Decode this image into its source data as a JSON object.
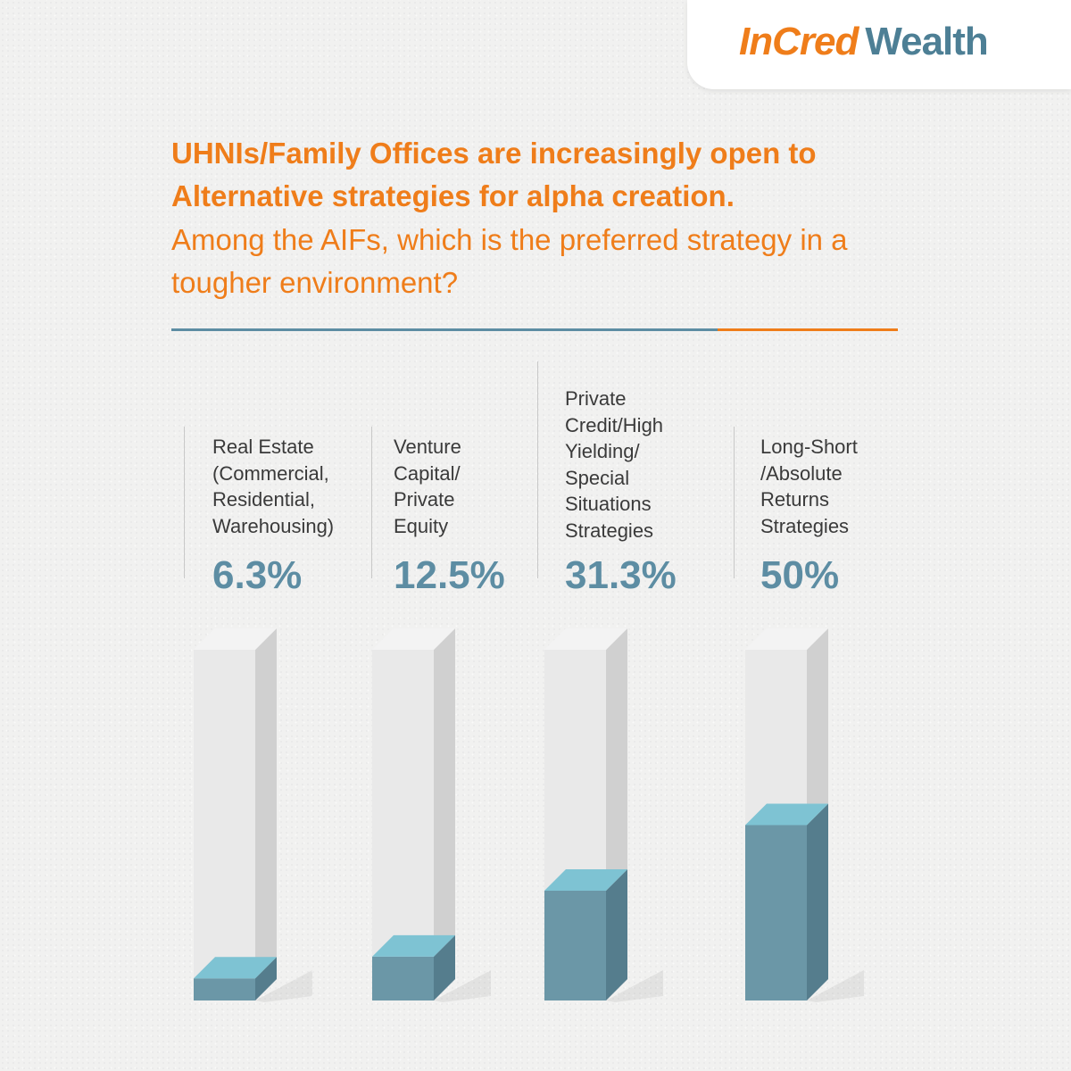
{
  "brand": {
    "name": "InCred",
    "suffix": "Wealth",
    "colors": {
      "orange": "#ef7d1a",
      "teal": "#4d7f95"
    }
  },
  "heading": {
    "headline": "UHNIs/Family Offices are increasingly open to  Alternative strategies for alpha creation.",
    "question": "Among the AIFs, which is the preferred strategy in a tougher environment?"
  },
  "chart_data": {
    "type": "bar",
    "style": "3d-cylinder-fill",
    "categories": [
      "Real Estate (Commercial, Residential, Warehousing)",
      "Venture Capital/ Private Equity",
      "Private Credit/High Yielding/ Special Situations Strategies",
      "Long-Short /Absolute Returns Strategies"
    ],
    "values": [
      6.3,
      12.5,
      31.3,
      50
    ],
    "value_labels": [
      "6.3%",
      "12.5%",
      "31.3%",
      "50%"
    ],
    "ylim": [
      0,
      100
    ],
    "unit": "%",
    "grid": false,
    "colors": {
      "fill": "#6b97a7",
      "fill_top": "#7ec3d3",
      "fill_side": "#557d8d",
      "empty": "#e9e9e9",
      "empty_side": "#d0d0d0"
    }
  }
}
